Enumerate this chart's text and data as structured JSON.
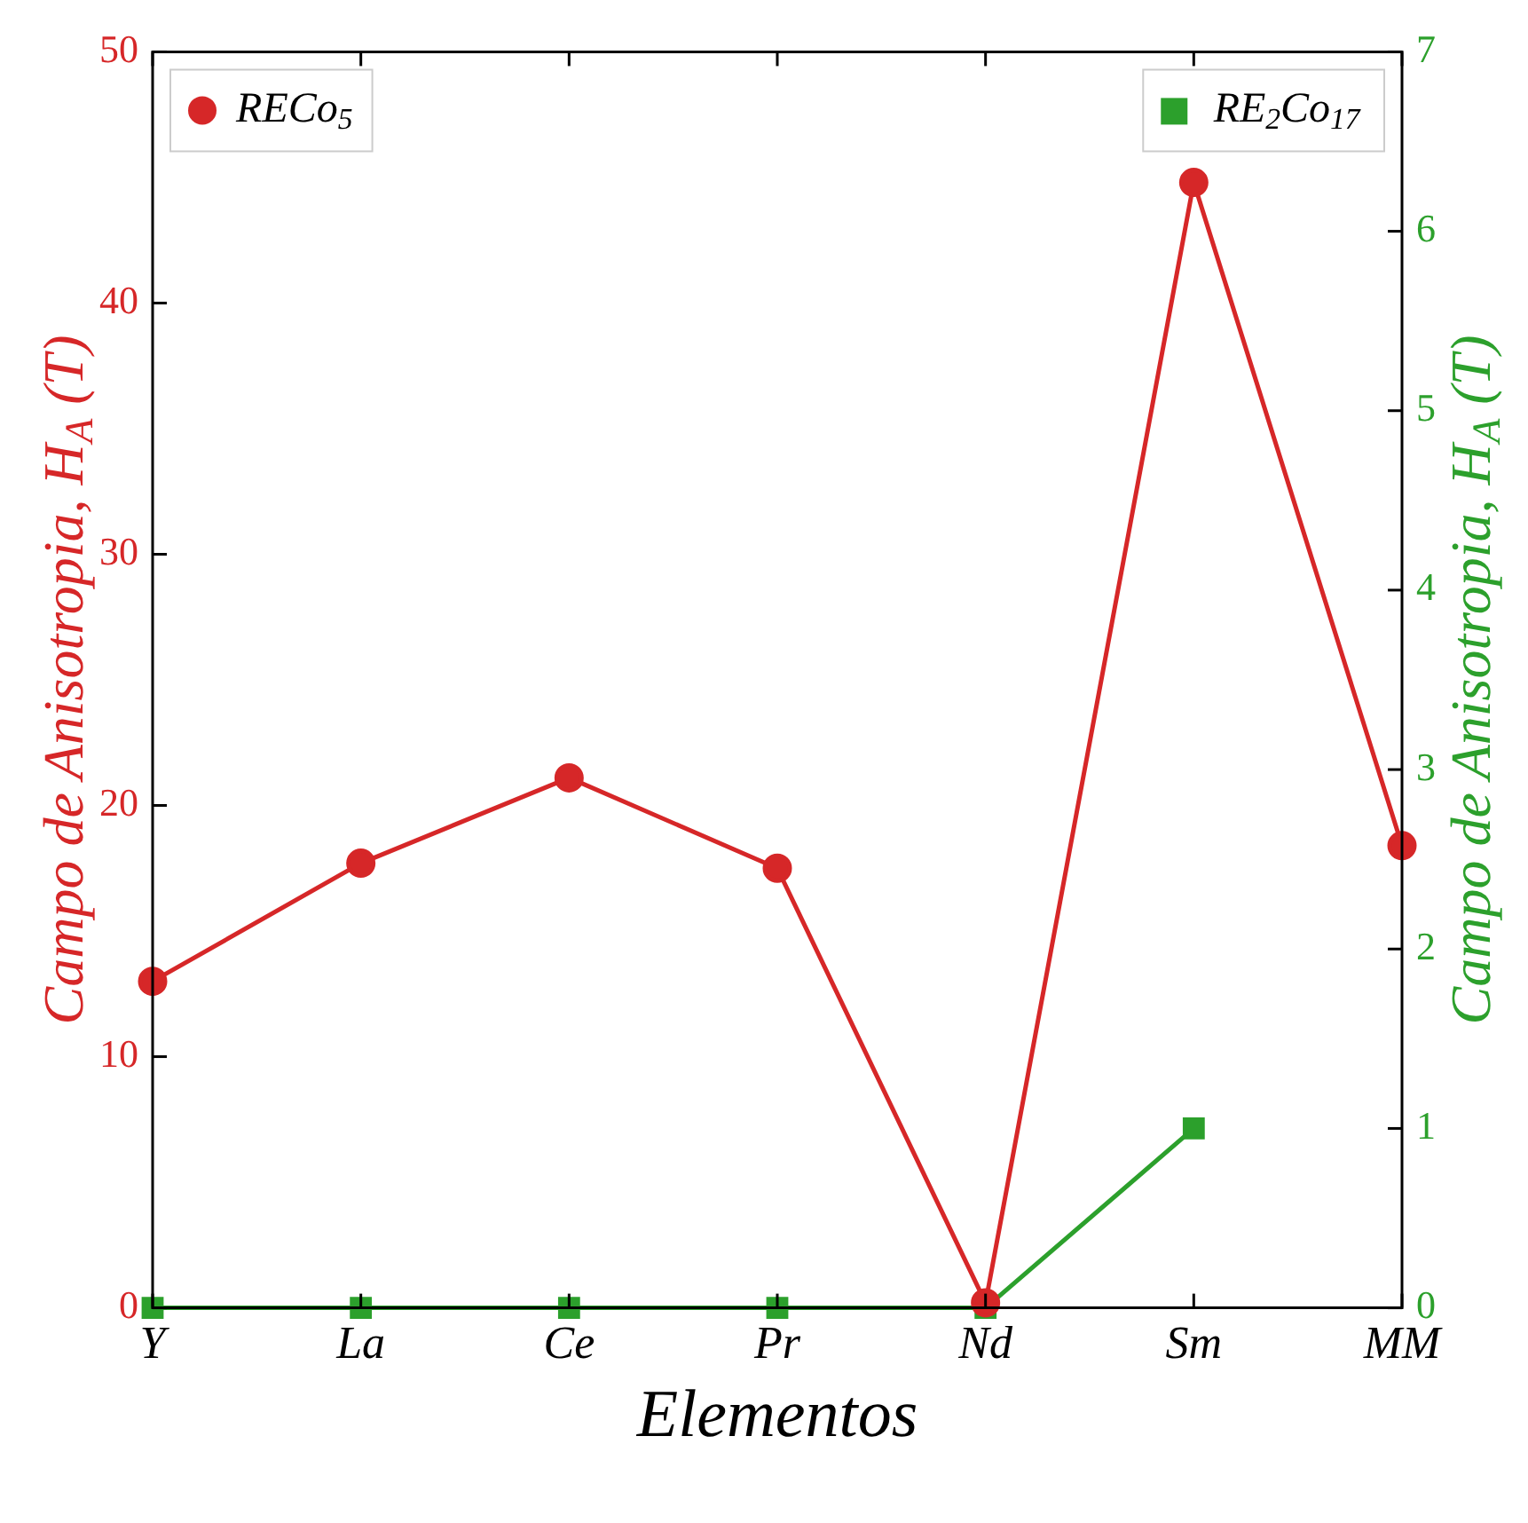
{
  "chart_data": {
    "type": "line",
    "xlabel": "Elementos",
    "ylabel": "Campo de Anisotropia, H$_{A}$ (T)",
    "y2label": "Campo de Anisotropia, H$_{A}$ (T)",
    "categories": [
      "Y",
      "La",
      "Ce",
      "Pr",
      "Nd",
      "Sm",
      "MM"
    ],
    "series": [
      {
        "name": "RECo$_{5}$",
        "color": "#d62728",
        "marker": "circle",
        "values": [
          13,
          17.7,
          21.1,
          17.5,
          0.2,
          44.8,
          18.4
        ]
      },
      {
        "name": "RE$_{2}$Co$_{17}$",
        "color": "#2ca02c",
        "marker": "square",
        "axis": "y2",
        "values": [
          0,
          0,
          0,
          0,
          0,
          1.0,
          null
        ]
      }
    ],
    "ylim": [
      0,
      50
    ],
    "yticks": [
      0,
      10,
      20,
      30,
      40,
      50
    ],
    "y2lim": [
      0,
      7
    ],
    "y2ticks": [
      0,
      1,
      2,
      3,
      4,
      5,
      6,
      7
    ],
    "grid": false,
    "legend": "top"
  }
}
